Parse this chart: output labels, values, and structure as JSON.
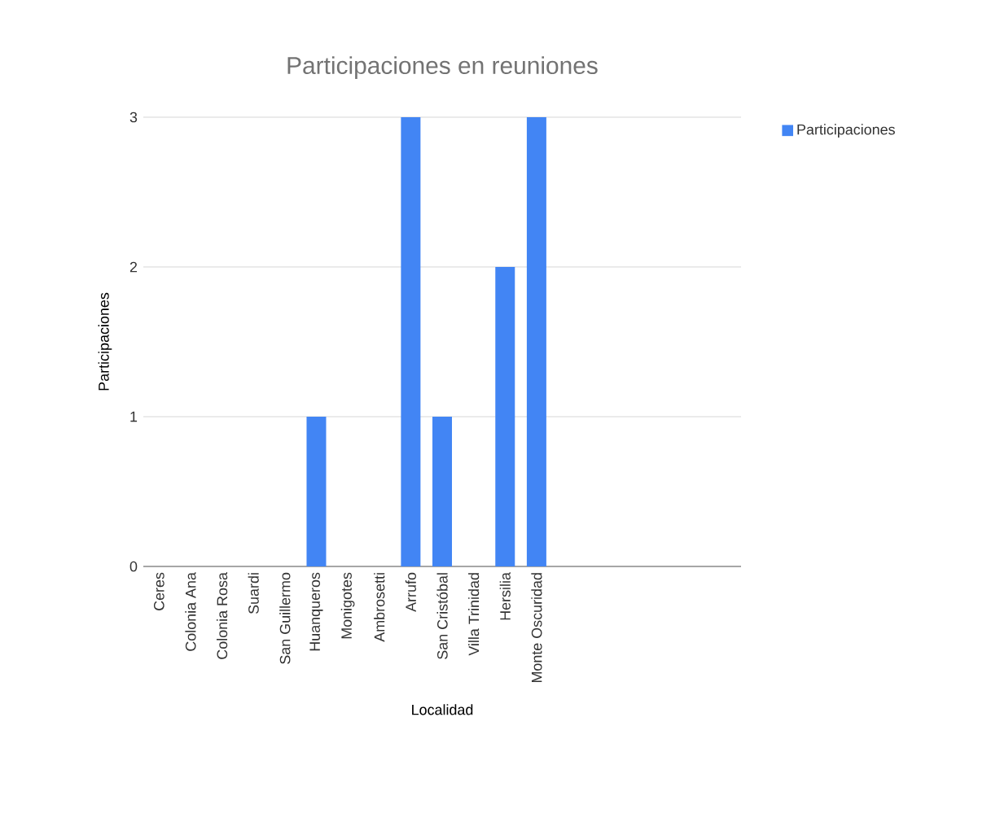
{
  "chart_data": {
    "type": "bar",
    "title": "Participaciones en reuniones",
    "xlabel": "Localidad",
    "ylabel": "Participaciones",
    "categories": [
      "Ceres",
      "Colonia Ana",
      "Colonia Rosa",
      "Suardi",
      "San Guillermo",
      "Huanqueros",
      "Monigotes",
      "Ambrosetti",
      "Arrufo",
      "San Cristóbal",
      "Villa Trinidad",
      "Hersilia",
      "Monte Oscuridad",
      null,
      null,
      null,
      null,
      null,
      null
    ],
    "series": [
      {
        "name": "Participaciones",
        "color": "#4285f4",
        "values": [
          0,
          0,
          0,
          0,
          0,
          1,
          0,
          0,
          3,
          1,
          0,
          2,
          3,
          null,
          null,
          null,
          null,
          null,
          null
        ]
      }
    ],
    "ylim": [
      0,
      3
    ],
    "yticks": [
      0,
      1,
      2,
      3
    ],
    "grid": "y",
    "legend": "top right"
  }
}
